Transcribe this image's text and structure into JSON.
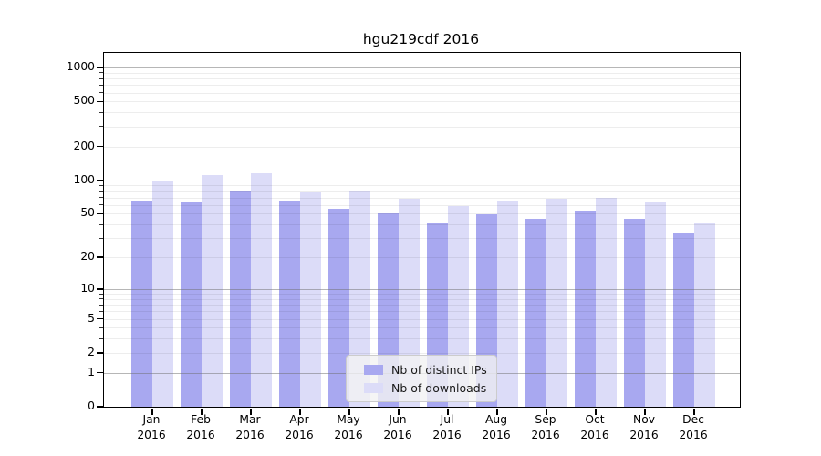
{
  "title": "hgu219cdf 2016",
  "chart_data": {
    "type": "bar",
    "title": "hgu219cdf 2016",
    "y_scale": "log1p",
    "ylim": [
      0,
      1350
    ],
    "grid": true,
    "legend_position": "bottom-center",
    "y_ticks": [
      1000,
      500,
      200,
      100,
      50,
      20,
      10,
      5,
      2,
      1,
      0
    ],
    "categories": [
      {
        "month": "Jan",
        "year": "2016"
      },
      {
        "month": "Feb",
        "year": "2016"
      },
      {
        "month": "Mar",
        "year": "2016"
      },
      {
        "month": "Apr",
        "year": "2016"
      },
      {
        "month": "May",
        "year": "2016"
      },
      {
        "month": "Jun",
        "year": "2016"
      },
      {
        "month": "Jul",
        "year": "2016"
      },
      {
        "month": "Aug",
        "year": "2016"
      },
      {
        "month": "Sep",
        "year": "2016"
      },
      {
        "month": "Oct",
        "year": "2016"
      },
      {
        "month": "Nov",
        "year": "2016"
      },
      {
        "month": "Dec",
        "year": "2016"
      }
    ],
    "series": [
      {
        "name": "Nb of distinct IPs",
        "slug": "distinct-ips",
        "color": "#a8a8f0",
        "values": [
          66,
          63,
          80,
          65,
          55,
          50,
          42,
          49,
          45,
          53,
          45,
          34
        ]
      },
      {
        "name": "Nb of downloads",
        "slug": "downloads",
        "color": "#dcdcf8",
        "values": [
          100,
          112,
          116,
          79,
          80,
          68,
          59,
          66,
          68,
          70,
          63,
          42
        ]
      }
    ]
  }
}
